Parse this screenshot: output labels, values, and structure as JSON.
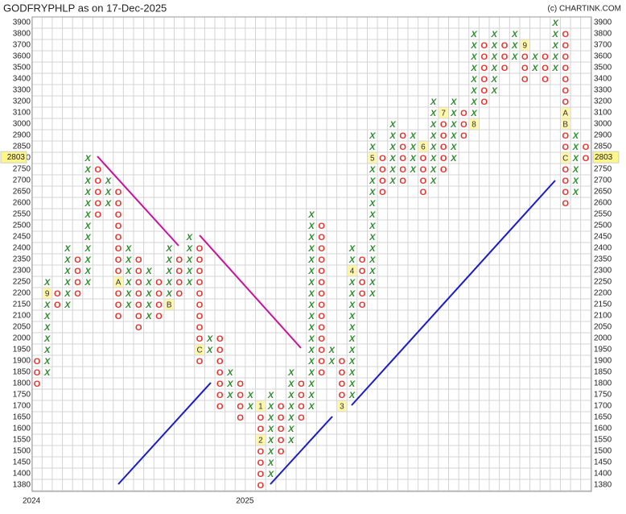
{
  "chart_data": {
    "type": "point-and-figure",
    "title": "GODFRYPHLP as on 17-Dec-2025",
    "credit": "(c) CHARTINK.COM",
    "last_price": 2803,
    "x_color": "#2e8b2e",
    "o_color": "#e8302a",
    "yticks": [
      3900,
      3800,
      3700,
      3600,
      3500,
      3400,
      3300,
      3200,
      3100,
      3000,
      2900,
      2850,
      2800,
      2750,
      2700,
      2650,
      2600,
      2550,
      2500,
      2450,
      2400,
      2350,
      2300,
      2250,
      2200,
      2150,
      2100,
      2050,
      2000,
      1950,
      1900,
      1850,
      1800,
      1750,
      1700,
      1650,
      1600,
      1550,
      1500,
      1450,
      1400,
      1380
    ],
    "ylim": [
      1380,
      3900
    ],
    "x_labels": [
      {
        "label": "2024",
        "column": 0
      },
      {
        "label": "2025",
        "column": 21
      }
    ],
    "columns": [
      {
        "type": "O",
        "from": 1900,
        "to": 1800
      },
      {
        "type": "X",
        "from": 1850,
        "to": 2250
      },
      {
        "type": "O",
        "from": 2200,
        "to": 2150
      },
      {
        "type": "X",
        "from": 2150,
        "to": 2400
      },
      {
        "type": "O",
        "from": 2350,
        "to": 2200
      },
      {
        "type": "X",
        "from": 2250,
        "to": 2800
      },
      {
        "type": "O",
        "from": 2750,
        "to": 2550
      },
      {
        "type": "X",
        "from": 2600,
        "to": 2700
      },
      {
        "type": "O",
        "from": 2650,
        "to": 2100
      },
      {
        "type": "X",
        "from": 2150,
        "to": 2400
      },
      {
        "type": "O",
        "from": 2350,
        "to": 2050
      },
      {
        "type": "X",
        "from": 2100,
        "to": 2300
      },
      {
        "type": "O",
        "from": 2250,
        "to": 2100
      },
      {
        "type": "X",
        "from": 2150,
        "to": 2400
      },
      {
        "type": "O",
        "from": 2350,
        "to": 2200
      },
      {
        "type": "X",
        "from": 2250,
        "to": 2450
      },
      {
        "type": "O",
        "from": 2400,
        "to": 1900
      },
      {
        "type": "X",
        "from": 1950,
        "to": 2000
      },
      {
        "type": "O",
        "from": 2000,
        "to": 1700
      },
      {
        "type": "X",
        "from": 1750,
        "to": 1850
      },
      {
        "type": "O",
        "from": 1800,
        "to": 1650
      },
      {
        "type": "X",
        "from": 1700,
        "to": 1750
      },
      {
        "type": "O",
        "from": 1700,
        "to": 1380
      },
      {
        "type": "X",
        "from": 1400,
        "to": 1750
      },
      {
        "type": "O",
        "from": 1700,
        "to": 1500
      },
      {
        "type": "X",
        "from": 1550,
        "to": 1850
      },
      {
        "type": "O",
        "from": 1800,
        "to": 1650
      },
      {
        "type": "X",
        "from": 1700,
        "to": 2550
      },
      {
        "type": "O",
        "from": 2500,
        "to": 1850
      },
      {
        "type": "X",
        "from": 1900,
        "to": 1950
      },
      {
        "type": "O",
        "from": 1900,
        "to": 1700
      },
      {
        "type": "X",
        "from": 1750,
        "to": 2400
      },
      {
        "type": "O",
        "from": 2350,
        "to": 2150
      },
      {
        "type": "X",
        "from": 2200,
        "to": 2900
      },
      {
        "type": "O",
        "from": 2800,
        "to": 2650
      },
      {
        "type": "X",
        "from": 2700,
        "to": 3000
      },
      {
        "type": "O",
        "from": 2900,
        "to": 2700
      },
      {
        "type": "X",
        "from": 2750,
        "to": 2900
      },
      {
        "type": "O",
        "from": 2850,
        "to": 2650
      },
      {
        "type": "X",
        "from": 2700,
        "to": 3200
      },
      {
        "type": "O",
        "from": 3100,
        "to": 2750
      },
      {
        "type": "X",
        "from": 2800,
        "to": 3200
      },
      {
        "type": "O",
        "from": 3100,
        "to": 2900
      },
      {
        "type": "X",
        "from": 3000,
        "to": 3800
      },
      {
        "type": "O",
        "from": 3700,
        "to": 3200
      },
      {
        "type": "X",
        "from": 3300,
        "to": 3800
      },
      {
        "type": "O",
        "from": 3700,
        "to": 3500
      },
      {
        "type": "X",
        "from": 3600,
        "to": 3800
      },
      {
        "type": "O",
        "from": 3700,
        "to": 3400
      },
      {
        "type": "X",
        "from": 3500,
        "to": 3600
      },
      {
        "type": "O",
        "from": 3600,
        "to": 3400
      },
      {
        "type": "X",
        "from": 3500,
        "to": 3900
      },
      {
        "type": "O",
        "from": 3800,
        "to": 2600
      },
      {
        "type": "X",
        "from": 2650,
        "to": 2900
      },
      {
        "type": "O",
        "from": 2850,
        "to": 2800
      }
    ],
    "markers": [
      {
        "column": 1,
        "at": 2200,
        "label": "9"
      },
      {
        "column": 8,
        "at": 2250,
        "label": "A"
      },
      {
        "column": 13,
        "at": 2150,
        "label": "B"
      },
      {
        "column": 16,
        "at": 1950,
        "label": "C"
      },
      {
        "column": 22,
        "at": 1700,
        "label": "1"
      },
      {
        "column": 22,
        "at": 1550,
        "label": "2"
      },
      {
        "column": 30,
        "at": 1700,
        "label": "3"
      },
      {
        "column": 31,
        "at": 2300,
        "label": "4"
      },
      {
        "column": 33,
        "at": 2800,
        "label": "5"
      },
      {
        "column": 38,
        "at": 2850,
        "label": "6"
      },
      {
        "column": 40,
        "at": 3100,
        "label": "7"
      },
      {
        "column": 43,
        "at": 3000,
        "label": "8"
      },
      {
        "column": 48,
        "at": 3700,
        "label": "9"
      },
      {
        "column": 52,
        "at": 3100,
        "label": "A"
      },
      {
        "column": 52,
        "at": 3000,
        "label": "B"
      },
      {
        "column": 52,
        "at": 2800,
        "label": "C"
      }
    ]
  }
}
